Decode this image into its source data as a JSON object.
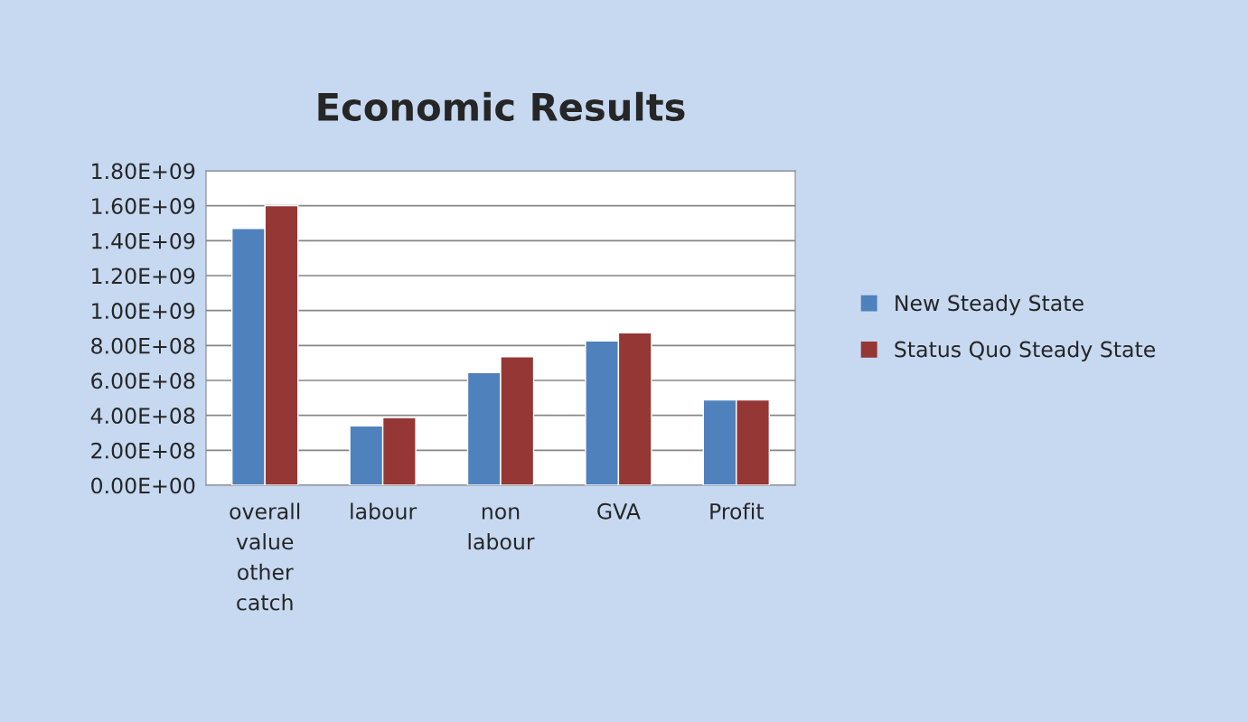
{
  "chart_data": {
    "type": "bar",
    "title": "Economic Results",
    "categories": [
      "overall value other catch",
      "labour",
      "non labour",
      "GVA",
      "Profit"
    ],
    "series": [
      {
        "name": "New Steady State",
        "color": "#4f81bd",
        "values": [
          1470000000.0,
          340000000.0,
          645000000.0,
          826000000.0,
          488000000.0
        ]
      },
      {
        "name": "Status Quo Steady State",
        "color": "#953735",
        "values": [
          1600000000.0,
          387000000.0,
          735000000.0,
          872000000.0,
          488000000.0
        ]
      }
    ],
    "ylim": [
      0,
      1800000000.0
    ],
    "yticks": [
      {
        "value": 0,
        "label": "0.00E+00"
      },
      {
        "value": 200000000.0,
        "label": "2.00E+08"
      },
      {
        "value": 400000000.0,
        "label": "4.00E+08"
      },
      {
        "value": 600000000.0,
        "label": "6.00E+08"
      },
      {
        "value": 800000000.0,
        "label": "8.00E+08"
      },
      {
        "value": 1000000000.0,
        "label": "1.00E+09"
      },
      {
        "value": 1200000000.0,
        "label": "1.20E+09"
      },
      {
        "value": 1400000000.0,
        "label": "1.40E+09"
      },
      {
        "value": 1600000000.0,
        "label": "1.60E+09"
      },
      {
        "value": 1800000000.0,
        "label": "1.80E+09"
      }
    ],
    "grid": "y",
    "legend": "right"
  }
}
